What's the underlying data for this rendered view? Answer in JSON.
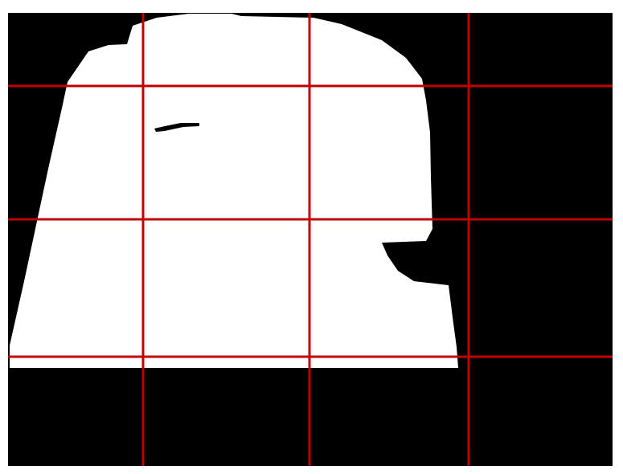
{
  "colors": {
    "page_background": "#ffffff",
    "mask_background": "#000000",
    "mask_foreground": "#ffffff",
    "grid_line": "#c00000"
  },
  "mask": {
    "type": "binary segmentation mask",
    "foreground_shape": "silhouette"
  },
  "grid": {
    "columns": 4,
    "rows": 4
  }
}
